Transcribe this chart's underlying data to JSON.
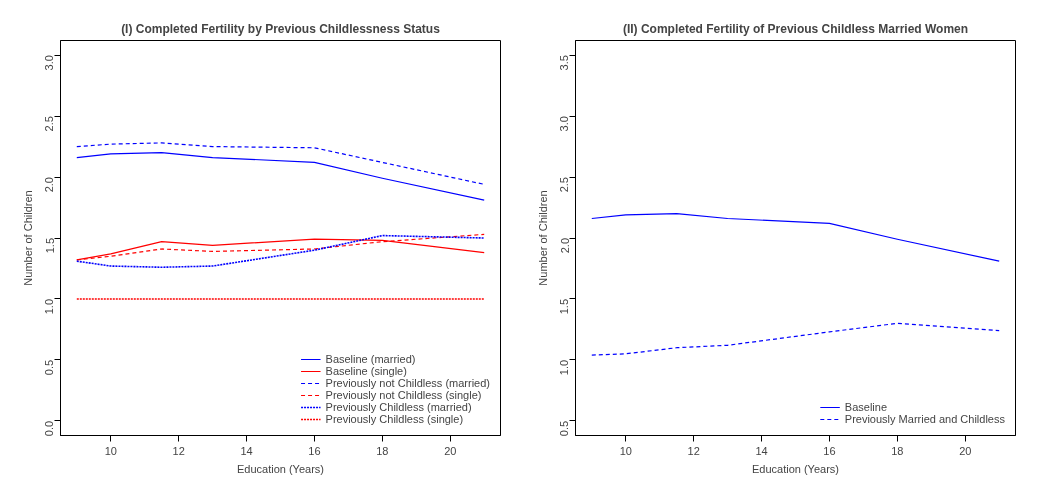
{
  "chart_data": [
    {
      "type": "line",
      "title": "(I) Completed Fertility by Previous Childlessness Status",
      "xlabel": "Education (Years)",
      "ylabel": "Number of Children",
      "x": [
        9,
        10,
        11.5,
        13,
        16,
        18,
        21
      ],
      "xlim": [
        8.52,
        21.48
      ],
      "xticks": [
        10,
        12,
        14,
        16,
        18,
        20
      ],
      "ylim": [
        -0.12,
        3.12
      ],
      "yticks": [
        {
          "value": 0,
          "label": "0.0"
        },
        0.5,
        {
          "value": 1,
          "label": "1.0"
        },
        1.5,
        {
          "value": 2,
          "label": "2.0"
        },
        2.5,
        {
          "value": 3,
          "label": "3.0"
        }
      ],
      "grid": false,
      "legend": "bottom right",
      "series": [
        {
          "name": "Baseline (married)",
          "color": "#0000ff",
          "line_style": "solid",
          "values": [
            2.16,
            2.19,
            2.2,
            2.16,
            2.12,
            1.99,
            1.81
          ]
        },
        {
          "name": "Baseline (single)",
          "color": "#ff0000",
          "line_style": "solid",
          "values": [
            1.32,
            1.37,
            1.47,
            1.44,
            1.49,
            1.48,
            1.38
          ]
        },
        {
          "name": "Previously not Childless (married)",
          "color": "#0000ff",
          "line_style": "dashed",
          "values": [
            2.25,
            2.27,
            2.28,
            2.25,
            2.24,
            2.12,
            1.94
          ]
        },
        {
          "name": "Previously not Childless (single)",
          "color": "#ff0000",
          "line_style": "dashed",
          "values": [
            1.32,
            1.35,
            1.41,
            1.39,
            1.41,
            1.47,
            1.53
          ]
        },
        {
          "name": "Previously Childless (married)",
          "color": "#0000ff",
          "line_style": "dotted",
          "values": [
            1.31,
            1.27,
            1.26,
            1.27,
            1.4,
            1.52,
            1.5
          ]
        },
        {
          "name": "Previously Childless (single)",
          "color": "#ff0000",
          "line_style": "dotted",
          "values": [
            1.0,
            1.0,
            1.0,
            1.0,
            1.0,
            1.0,
            1.0
          ]
        }
      ]
    },
    {
      "type": "line",
      "title": "(II) Completed Fertility of Previous Childless Married Women",
      "xlabel": "Education (Years)",
      "ylabel": "Number of Children",
      "x": [
        9,
        10,
        11.5,
        13,
        16,
        18,
        21
      ],
      "xlim": [
        8.52,
        21.48
      ],
      "xticks": [
        10,
        12,
        14,
        16,
        18,
        20
      ],
      "ylim": [
        0.38,
        3.62
      ],
      "yticks": [
        0.5,
        {
          "value": 1,
          "label": "1.0"
        },
        1.5,
        {
          "value": 2,
          "label": "2.0"
        },
        2.5,
        {
          "value": 3,
          "label": "3.0"
        },
        3.5
      ],
      "grid": false,
      "legend": "bottom right",
      "series": [
        {
          "name": "Baseline",
          "color": "#0000ff",
          "line_style": "solid",
          "values": [
            2.16,
            2.19,
            2.2,
            2.16,
            2.12,
            1.99,
            1.81
          ]
        },
        {
          "name": "Previously Married and Childless",
          "color": "#0000ff",
          "line_style": "dashed",
          "values": [
            1.04,
            1.05,
            1.1,
            1.12,
            1.23,
            1.3,
            1.24
          ]
        }
      ]
    }
  ]
}
